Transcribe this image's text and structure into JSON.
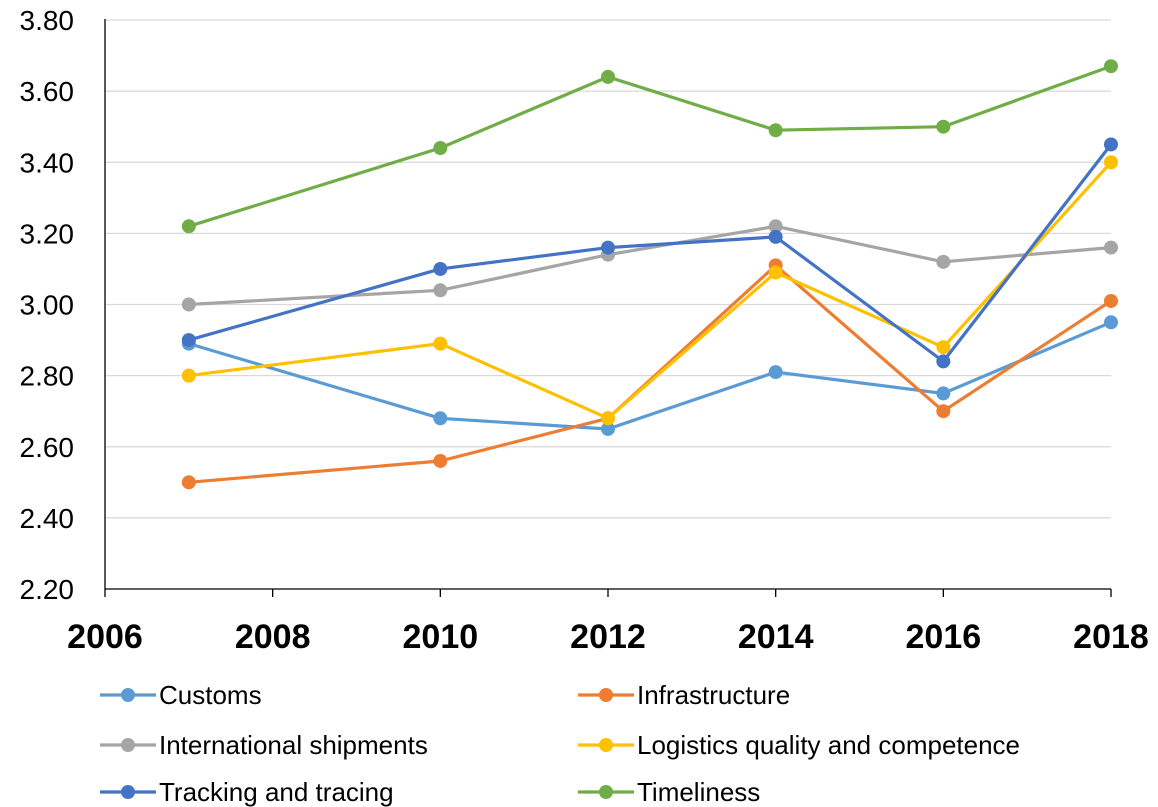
{
  "chart_data": {
    "type": "line",
    "x": [
      2007,
      2010,
      2012,
      2014,
      2016,
      2018
    ],
    "xlim": [
      2006,
      2018
    ],
    "xticks": [
      2006,
      2008,
      2010,
      2012,
      2014,
      2016,
      2018
    ],
    "x_tick_labels": [
      "2006",
      "2008",
      "2010",
      "2012",
      "2014",
      "2016",
      "2018"
    ],
    "ylim": [
      2.2,
      3.8
    ],
    "yticks": [
      2.2,
      2.4,
      2.6,
      2.8,
      3.0,
      3.2,
      3.4,
      3.6,
      3.8
    ],
    "y_tick_labels": [
      "2.20",
      "2.40",
      "2.60",
      "2.80",
      "3.00",
      "3.20",
      "3.40",
      "3.60",
      "3.80"
    ],
    "grid": "horizontal",
    "legend_position": "bottom",
    "series": [
      {
        "name": "Customs",
        "color": "#5B9BD5",
        "values": [
          2.89,
          2.68,
          2.65,
          2.81,
          2.75,
          2.95
        ]
      },
      {
        "name": "Infrastructure",
        "color": "#ED7D31",
        "values": [
          2.5,
          2.56,
          2.68,
          3.11,
          2.7,
          3.01
        ]
      },
      {
        "name": "International shipments",
        "color": "#A5A5A5",
        "values": [
          3.0,
          3.04,
          3.14,
          3.22,
          3.12,
          3.16
        ]
      },
      {
        "name": "Logistics quality and competence",
        "color": "#FFC000",
        "values": [
          2.8,
          2.89,
          2.68,
          3.09,
          2.88,
          3.4
        ]
      },
      {
        "name": "Tracking and tracing",
        "color": "#4472C4",
        "values": [
          2.9,
          3.1,
          3.16,
          3.19,
          2.84,
          3.45
        ]
      },
      {
        "name": "Timeliness",
        "color": "#70AD47",
        "values": [
          3.22,
          3.44,
          3.64,
          3.49,
          3.5,
          3.67
        ]
      }
    ]
  }
}
